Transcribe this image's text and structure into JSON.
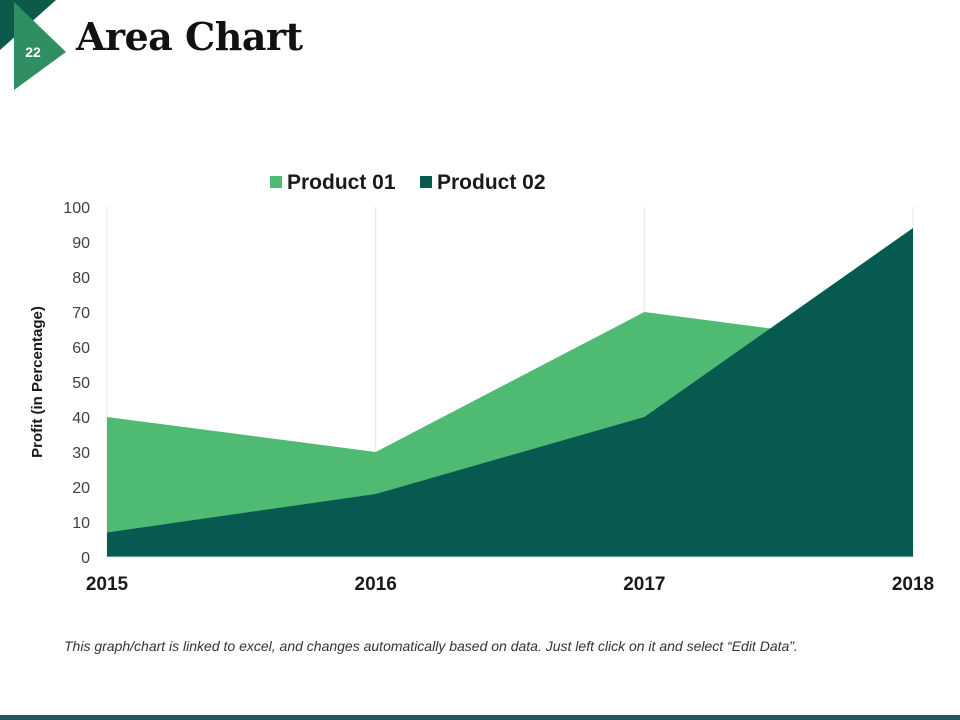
{
  "slide": {
    "number": "22",
    "title": "Area Chart"
  },
  "colors": {
    "badge_dark": "#0b5a4c",
    "badge_light": "#2f8f63",
    "series1": "#4fbb72",
    "series2": "#065a50",
    "bottom_bar": "#1d5a66"
  },
  "chart_data": {
    "type": "area",
    "title": "",
    "categories": [
      "2015",
      "2016",
      "2017",
      "2018"
    ],
    "series": [
      {
        "name": "Product 01",
        "values": [
          40,
          30,
          70,
          60
        ],
        "color": "#4fbb72"
      },
      {
        "name": "Product 02",
        "values": [
          7,
          18,
          40,
          94
        ],
        "color": "#065a50"
      }
    ],
    "ylabel": "Profit (in Percentage)",
    "xlabel": "",
    "ylim": [
      0,
      100
    ],
    "yticks": [
      "0",
      "10",
      "20",
      "30",
      "40",
      "50",
      "60",
      "70",
      "80",
      "90",
      "100"
    ],
    "legend_position": "top"
  },
  "footnote": "This graph/chart is linked to excel, and changes automatically based on data. Just left click on it and select “Edit Data”."
}
